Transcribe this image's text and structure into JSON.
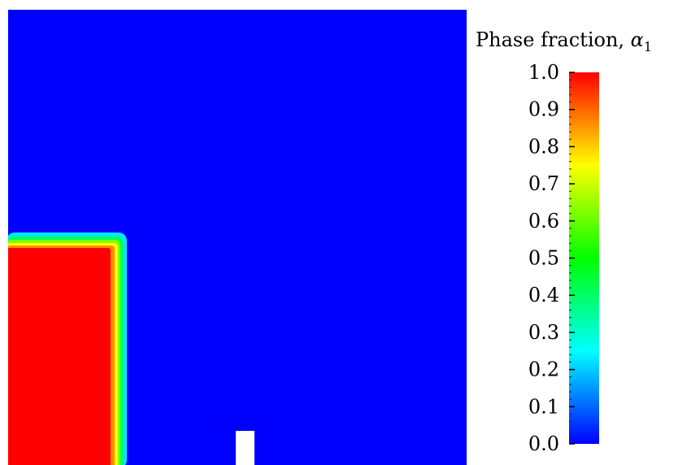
{
  "chart_data": {
    "type": "heatmap",
    "field": "phase fraction",
    "colorbar": {
      "title_prefix": "Phase fraction, ",
      "title_symbol": "α",
      "title_subscript": "1",
      "min": 0.0,
      "max": 1.0,
      "ticks": [
        0.0,
        0.1,
        0.2,
        0.3,
        0.4,
        0.5,
        0.6,
        0.7,
        0.8,
        0.9,
        1.0
      ],
      "tick_labels": [
        "0.0",
        "0.1",
        "0.2",
        "0.3",
        "0.4",
        "0.5",
        "0.6",
        "0.7",
        "0.8",
        "0.9",
        "1.0"
      ],
      "minor_ticks_per_major": 5,
      "colormap": "rainbow (blue → cyan → green → yellow → red)",
      "placement": "right"
    },
    "regions": [
      {
        "name": "water-column",
        "value": 1.0,
        "color": "#ff0000",
        "location": "bottom-left"
      },
      {
        "name": "air",
        "value": 0.0,
        "color": "#0000ff",
        "location": "rest of domain"
      },
      {
        "name": "obstacle",
        "value": null,
        "color": "#ffffff",
        "location": "bottom-center"
      }
    ]
  }
}
